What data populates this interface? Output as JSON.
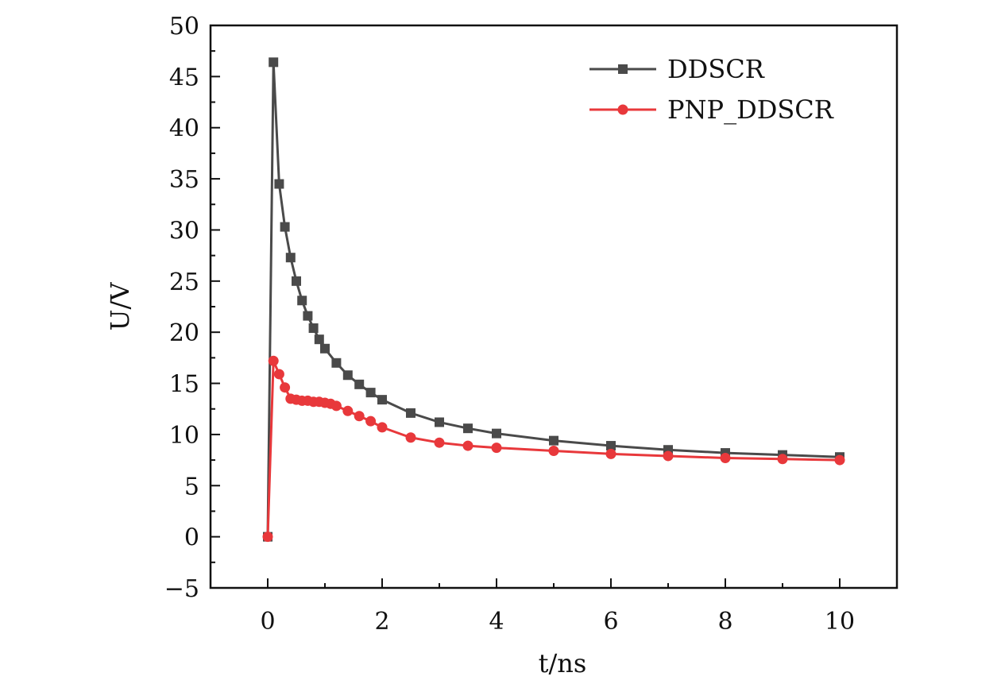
{
  "chart_data": {
    "type": "line",
    "xlabel": "t/ns",
    "ylabel": "U/V",
    "xlim": [
      -1,
      11
    ],
    "ylim": [
      -5,
      50
    ],
    "x_ticks": [
      0,
      2,
      4,
      6,
      8,
      10
    ],
    "y_ticks": [
      -5,
      0,
      5,
      10,
      15,
      20,
      25,
      30,
      35,
      40,
      45,
      50
    ],
    "x_tick_labels": [
      "0",
      "2",
      "4",
      "6",
      "8",
      "10"
    ],
    "y_tick_labels": [
      "−5",
      "0",
      "5",
      "10",
      "15",
      "20",
      "25",
      "30",
      "35",
      "40",
      "45",
      "50"
    ],
    "grid": false,
    "legend_position": "top-right",
    "series": [
      {
        "name": "DDSCR",
        "color": "#4a4a4a",
        "marker": "square",
        "x": [
          0.0,
          0.1,
          0.2,
          0.3,
          0.4,
          0.5,
          0.6,
          0.7,
          0.8,
          0.9,
          1.0,
          1.2,
          1.4,
          1.6,
          1.8,
          2.0,
          2.5,
          3.0,
          3.5,
          4.0,
          5.0,
          6.0,
          7.0,
          8.0,
          9.0,
          10.0
        ],
        "y": [
          0.0,
          46.4,
          34.5,
          30.3,
          27.3,
          25.0,
          23.1,
          21.6,
          20.4,
          19.3,
          18.4,
          17.0,
          15.8,
          14.9,
          14.1,
          13.4,
          12.1,
          11.2,
          10.6,
          10.1,
          9.4,
          8.9,
          8.5,
          8.2,
          8.0,
          7.8
        ]
      },
      {
        "name": "PNP_DDSCR",
        "color": "#e8383b",
        "marker": "circle",
        "x": [
          0.0,
          0.1,
          0.2,
          0.3,
          0.4,
          0.5,
          0.6,
          0.7,
          0.8,
          0.9,
          1.0,
          1.1,
          1.2,
          1.4,
          1.6,
          1.8,
          2.0,
          2.5,
          3.0,
          3.5,
          4.0,
          5.0,
          6.0,
          7.0,
          8.0,
          9.0,
          10.0
        ],
        "y": [
          0.0,
          17.2,
          15.9,
          14.6,
          13.5,
          13.4,
          13.3,
          13.3,
          13.2,
          13.2,
          13.1,
          13.0,
          12.8,
          12.3,
          11.8,
          11.3,
          10.7,
          9.7,
          9.2,
          8.9,
          8.7,
          8.4,
          8.1,
          7.9,
          7.7,
          7.6,
          7.5
        ]
      }
    ]
  }
}
